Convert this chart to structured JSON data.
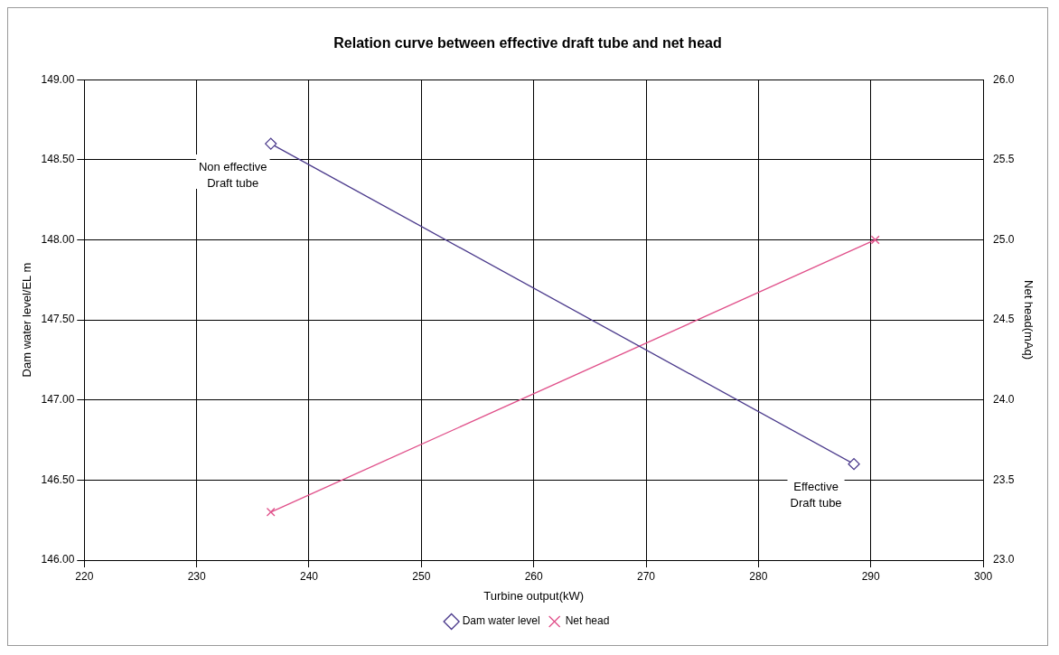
{
  "chart_data": {
    "type": "line",
    "title": "Relation curve between effective draft tube and net head",
    "xlabel": "Turbine output(kW)",
    "ylabel": "Dam water level/EL m",
    "y2label": "Net head(mAq)",
    "xlim": [
      220,
      300
    ],
    "xticks": [
      220,
      230,
      240,
      250,
      260,
      270,
      280,
      290,
      300
    ],
    "ylim": [
      146,
      149
    ],
    "yticks": [
      {
        "value": 146,
        "label": "146.00"
      },
      {
        "value": 146.5,
        "label": "146.50"
      },
      {
        "value": 147,
        "label": "147.00"
      },
      {
        "value": 147.5,
        "label": "147.50"
      },
      {
        "value": 148,
        "label": "148.00"
      },
      {
        "value": 148.5,
        "label": "148.50"
      },
      {
        "value": 149,
        "label": "149.00"
      }
    ],
    "y2lim": [
      23,
      26
    ],
    "y2ticks": [
      {
        "value": 23,
        "label": "23.0"
      },
      {
        "value": 23.5,
        "label": "23.5"
      },
      {
        "value": 24,
        "label": "24.0"
      },
      {
        "value": 24.5,
        "label": "24.5"
      },
      {
        "value": 25,
        "label": "25.0"
      },
      {
        "value": 25.5,
        "label": "25.5"
      },
      {
        "value": 26,
        "label": "26.0"
      }
    ],
    "series": [
      {
        "name": "Dam water level",
        "color": "#4b3a8c",
        "marker": "diamond",
        "x": [
          236.6,
          288.5
        ],
        "values": [
          148.6,
          146.6
        ]
      },
      {
        "name": "Net head",
        "color": "#e0508a",
        "marker": "cross",
        "axis": "y2",
        "x": [
          236.6,
          290.4
        ],
        "values": [
          23.3,
          25.0
        ]
      }
    ],
    "annotations": [
      {
        "text": "Non effective\nDraft tube",
        "x": 236.6,
        "y": 148.6
      },
      {
        "text": "Effective\nDraft tube",
        "x": 288.5,
        "y": 146.6
      }
    ],
    "grid": true,
    "legend": "bottom"
  }
}
